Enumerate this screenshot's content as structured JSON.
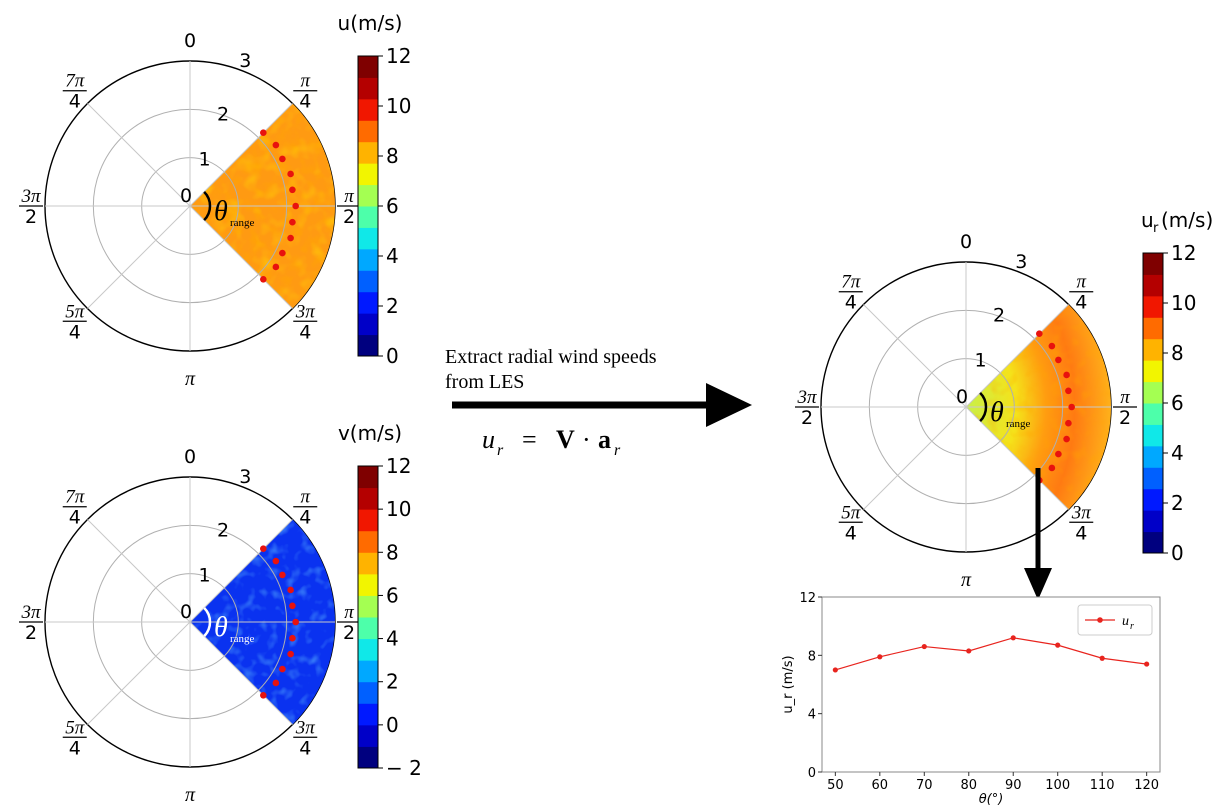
{
  "panels": [
    {
      "id": "u",
      "unit_label": "u(m/s)",
      "angle_labels": [
        {
          "key": "0",
          "text": "0"
        },
        {
          "key": "q1",
          "num": "π",
          "den": "4"
        },
        {
          "key": "q2",
          "num": "π",
          "den": "2"
        },
        {
          "key": "q3",
          "num": "3π",
          "den": "4"
        },
        {
          "key": "pi",
          "text": "π"
        },
        {
          "key": "q5",
          "num": "5π",
          "den": "4"
        },
        {
          "key": "q6",
          "num": "3π",
          "den": "2"
        },
        {
          "key": "q7",
          "num": "7π",
          "den": "4"
        }
      ],
      "radial_labels": [
        "0",
        "1",
        "2",
        "3"
      ],
      "theta_label": "θ",
      "theta_sub": "range",
      "colorbar_ticks": [
        "0",
        "2",
        "4",
        "6",
        "8",
        "10",
        "12"
      ],
      "fill": "orange"
    },
    {
      "id": "v",
      "unit_label": "v(m/s)",
      "angle_labels": [
        {
          "key": "0",
          "text": "0"
        },
        {
          "key": "q1",
          "num": "π",
          "den": "4"
        },
        {
          "key": "q2",
          "num": "π",
          "den": "2"
        },
        {
          "key": "q3",
          "num": "3π",
          "den": "4"
        },
        {
          "key": "pi",
          "text": "π"
        },
        {
          "key": "q5",
          "num": "5π",
          "den": "4"
        },
        {
          "key": "q6",
          "num": "3π",
          "den": "2"
        },
        {
          "key": "q7",
          "num": "7π",
          "den": "4"
        }
      ],
      "radial_labels": [
        "0",
        "1",
        "2",
        "3"
      ],
      "theta_label": "θ",
      "theta_sub": "range",
      "colorbar_ticks": [
        "− 2",
        "0",
        "2",
        "4",
        "6",
        "8",
        "10",
        "12"
      ],
      "fill": "blue"
    },
    {
      "id": "ur",
      "unit_label": "u",
      "unit_sub": "r",
      "unit_tail": "(m/s)",
      "angle_labels": [
        {
          "key": "0",
          "text": "0"
        },
        {
          "key": "q1",
          "num": "π",
          "den": "4"
        },
        {
          "key": "q2",
          "num": "π",
          "den": "2"
        },
        {
          "key": "q3",
          "num": "3π",
          "den": "4"
        },
        {
          "key": "pi",
          "text": "π"
        },
        {
          "key": "q5",
          "num": "5π",
          "den": "4"
        },
        {
          "key": "q6",
          "num": "3π",
          "den": "2"
        },
        {
          "key": "q7",
          "num": "7π",
          "den": "4"
        }
      ],
      "radial_labels": [
        "0",
        "1",
        "2",
        "3"
      ],
      "theta_label": "θ",
      "theta_sub": "range",
      "colorbar_ticks": [
        "0",
        "2",
        "4",
        "6",
        "8",
        "10",
        "12"
      ],
      "fill": "mixed"
    }
  ],
  "arrow_text": {
    "line1": "Extract radial wind speeds",
    "line2": "from LES"
  },
  "equation": {
    "lhs": "u",
    "lhs_sub": "r",
    "eq": "=",
    "vec": "V",
    "dot": "·",
    "a": "a",
    "a_sub": "r"
  },
  "chart_data": {
    "type": "line",
    "x": [
      50,
      60,
      70,
      80,
      90,
      100,
      110,
      120
    ],
    "series": [
      {
        "name": "u_r",
        "values": [
          7.0,
          7.9,
          8.6,
          8.3,
          9.2,
          8.7,
          7.8,
          7.4
        ]
      }
    ],
    "xticks": [
      "50",
      "60",
      "70",
      "80",
      "90",
      "100",
      "110",
      "120"
    ],
    "yticks": [
      "0",
      "4",
      "8",
      "12"
    ],
    "xlim": [
      47,
      123
    ],
    "ylim": [
      0,
      12
    ],
    "xlabel": "θ(°)",
    "ylabel": "u_r (m/s)",
    "legend": {
      "main": "u",
      "sub": "r"
    },
    "legend_position": "top-right",
    "color": "#e8241e"
  }
}
